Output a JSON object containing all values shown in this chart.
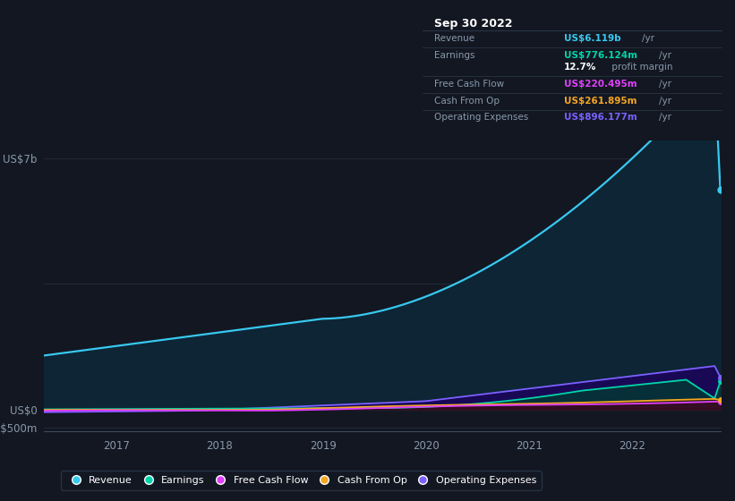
{
  "bg_color": "#131722",
  "plot_bg_color": "#131722",
  "grid_color": "#1e2a3a",
  "ylabel_top": "US$7b",
  "ylabel_zero": "US$0",
  "ylabel_neg": "-US$500m",
  "x_ticks": [
    2017,
    2018,
    2019,
    2020,
    2021,
    2022
  ],
  "ylim_min": -600000000,
  "ylim_max": 7500000000,
  "xmin": 2016.3,
  "xmax": 2022.85,
  "series": {
    "revenue": {
      "color": "#38c8f0",
      "fill": "#0d2535",
      "label": "Revenue"
    },
    "earnings": {
      "color": "#00d4aa",
      "fill": "#003d30",
      "label": "Earnings"
    },
    "free_cash_flow": {
      "color": "#e040fb",
      "fill": "#3a0050",
      "label": "Free Cash Flow"
    },
    "cash_from_op": {
      "color": "#f5a623",
      "fill": "#3a2500",
      "label": "Cash From Op"
    },
    "operating_expenses": {
      "color": "#7b61ff",
      "fill": "#1e0060",
      "label": "Operating Expenses"
    }
  },
  "tooltip": {
    "date": "Sep 30 2022",
    "bg": "#1a1f2e",
    "border": "#2a3a4a",
    "rows": [
      {
        "label": "Revenue",
        "value": "US$6.119b",
        "unit": "/yr",
        "value_color": "#38c8f0"
      },
      {
        "label": "Earnings",
        "value": "US$776.124m",
        "unit": "/yr",
        "value_color": "#00d4aa"
      },
      {
        "label": "",
        "value": "12.7%",
        "unit": " profit margin",
        "value_color": "#ffffff"
      },
      {
        "label": "Free Cash Flow",
        "value": "US$220.495m",
        "unit": "/yr",
        "value_color": "#e040fb"
      },
      {
        "label": "Cash From Op",
        "value": "US$261.895m",
        "unit": "/yr",
        "value_color": "#f5a623"
      },
      {
        "label": "Operating Expenses",
        "value": "US$896.177m",
        "unit": "/yr",
        "value_color": "#7b61ff"
      }
    ]
  },
  "legend": [
    {
      "label": "Revenue",
      "color": "#38c8f0"
    },
    {
      "label": "Earnings",
      "color": "#00d4aa"
    },
    {
      "label": "Free Cash Flow",
      "color": "#e040fb"
    },
    {
      "label": "Cash From Op",
      "color": "#f5a623"
    },
    {
      "label": "Operating Expenses",
      "color": "#7b61ff"
    }
  ]
}
